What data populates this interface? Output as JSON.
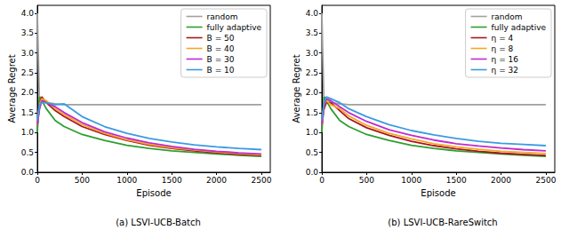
{
  "chart_data": [
    {
      "type": "line",
      "title": "(a) LSVI-UCB-Batch",
      "x_label": "Episode",
      "y_label": "Average Regret",
      "x": [
        0,
        25,
        50,
        100,
        200,
        300,
        500,
        750,
        1000,
        1250,
        1500,
        1750,
        2000,
        2250,
        2500
      ],
      "xlim": [
        0,
        2600
      ],
      "xticks": [
        0,
        500,
        1000,
        1500,
        2000,
        2500
      ],
      "ylim": [
        0,
        4.2
      ],
      "yticks": [
        {
          "value": 0,
          "label": "0.0"
        },
        {
          "value": 0.5,
          "label": "0.5"
        },
        {
          "value": 1,
          "label": "1.0"
        },
        {
          "value": 1.5,
          "label": "1.5"
        },
        {
          "value": 2,
          "label": "2.0"
        },
        {
          "value": 2.5,
          "label": "2.5"
        },
        {
          "value": 3,
          "label": "3.0"
        },
        {
          "value": 3.5,
          "label": "3.5"
        },
        {
          "value": 4,
          "label": "4.0"
        }
      ],
      "grid": false,
      "legend": "upper right",
      "series": [
        {
          "name": "random",
          "color": "#a0a0a0",
          "values": [
            4.0,
            1.6,
            1.85,
            1.75,
            1.72,
            1.7,
            1.7,
            1.7,
            1.7,
            1.7,
            1.7,
            1.7,
            1.7,
            1.7,
            1.7
          ]
        },
        {
          "name": "fully adaptive",
          "color": "#2e9e2e",
          "values": [
            1.0,
            1.9,
            1.8,
            1.6,
            1.3,
            1.15,
            0.95,
            0.8,
            0.68,
            0.6,
            0.54,
            0.5,
            0.46,
            0.43,
            0.4
          ]
        },
        {
          "name": "B = 50",
          "color": "#a8161c",
          "values": [
            1.2,
            1.7,
            1.9,
            1.75,
            1.55,
            1.4,
            1.15,
            0.95,
            0.8,
            0.68,
            0.6,
            0.54,
            0.49,
            0.45,
            0.42
          ]
        },
        {
          "name": "B = 40",
          "color": "#f5a623",
          "values": [
            1.2,
            1.7,
            1.85,
            1.8,
            1.6,
            1.45,
            1.2,
            0.98,
            0.82,
            0.7,
            0.62,
            0.56,
            0.51,
            0.47,
            0.44
          ]
        },
        {
          "name": "B = 30",
          "color": "#c02ad0",
          "values": [
            1.2,
            1.6,
            1.8,
            1.75,
            1.65,
            1.5,
            1.25,
            1.02,
            0.86,
            0.74,
            0.65,
            0.58,
            0.53,
            0.49,
            0.46
          ]
        },
        {
          "name": "B = 10",
          "color": "#3a9be0",
          "values": [
            1.3,
            1.7,
            1.75,
            1.75,
            1.7,
            1.72,
            1.4,
            1.15,
            0.98,
            0.85,
            0.76,
            0.69,
            0.64,
            0.6,
            0.57
          ]
        }
      ]
    },
    {
      "type": "line",
      "title": "(b) LSVI-UCB-RareSwitch",
      "x_label": "Episode",
      "y_label": "Average Regret",
      "x": [
        0,
        25,
        50,
        100,
        200,
        300,
        500,
        750,
        1000,
        1250,
        1500,
        1750,
        2000,
        2250,
        2500
      ],
      "xlim": [
        0,
        2600
      ],
      "xticks": [
        0,
        500,
        1000,
        1500,
        2000,
        2500
      ],
      "ylim": [
        0,
        4.2
      ],
      "yticks": [
        {
          "value": 0,
          "label": "0.0"
        },
        {
          "value": 0.5,
          "label": "0.5"
        },
        {
          "value": 1,
          "label": "1.0"
        },
        {
          "value": 1.5,
          "label": "1.5"
        },
        {
          "value": 2,
          "label": "2.0"
        },
        {
          "value": 2.5,
          "label": "2.5"
        },
        {
          "value": 3,
          "label": "3.0"
        },
        {
          "value": 3.5,
          "label": "3.5"
        },
        {
          "value": 4,
          "label": "4.0"
        }
      ],
      "grid": false,
      "legend": "upper right",
      "series": [
        {
          "name": "random",
          "color": "#a0a0a0",
          "values": [
            4.0,
            1.6,
            1.85,
            1.75,
            1.72,
            1.7,
            1.7,
            1.7,
            1.7,
            1.7,
            1.7,
            1.7,
            1.7,
            1.7,
            1.7
          ]
        },
        {
          "name": "fully adaptive",
          "color": "#2e9e2e",
          "values": [
            1.0,
            1.9,
            1.8,
            1.6,
            1.3,
            1.15,
            0.95,
            0.8,
            0.68,
            0.6,
            0.54,
            0.5,
            0.46,
            0.43,
            0.4
          ]
        },
        {
          "name": "η = 4",
          "color": "#a8161c",
          "values": [
            1.2,
            1.6,
            1.75,
            1.75,
            1.55,
            1.35,
            1.12,
            0.93,
            0.78,
            0.67,
            0.59,
            0.53,
            0.48,
            0.45,
            0.42
          ]
        },
        {
          "name": "η = 8",
          "color": "#f5a623",
          "values": [
            1.2,
            1.7,
            1.8,
            1.7,
            1.6,
            1.42,
            1.18,
            0.98,
            0.84,
            0.72,
            0.64,
            0.58,
            0.53,
            0.5,
            0.47
          ]
        },
        {
          "name": "η = 16",
          "color": "#c02ad0",
          "values": [
            1.2,
            1.7,
            1.85,
            1.8,
            1.65,
            1.5,
            1.28,
            1.07,
            0.93,
            0.81,
            0.72,
            0.66,
            0.61,
            0.57,
            0.54
          ]
        },
        {
          "name": "η = 32",
          "color": "#3a9be0",
          "values": [
            1.3,
            1.75,
            1.9,
            1.85,
            1.75,
            1.6,
            1.4,
            1.2,
            1.05,
            0.94,
            0.85,
            0.78,
            0.73,
            0.7,
            0.67
          ]
        }
      ]
    }
  ]
}
